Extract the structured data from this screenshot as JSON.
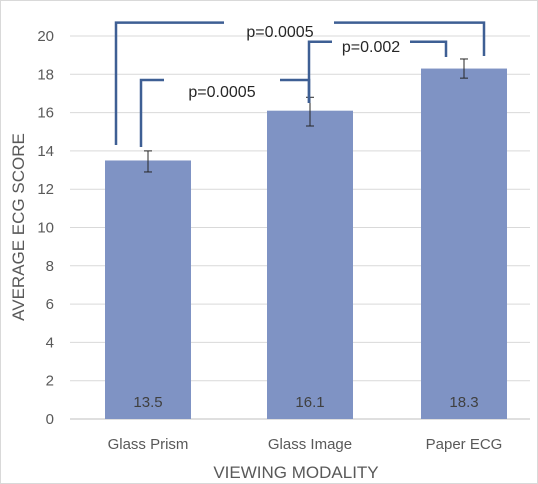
{
  "chart_data": {
    "type": "bar",
    "categories": [
      "Glass Prism",
      "Glass Image",
      "Paper ECG"
    ],
    "values": [
      13.5,
      16.1,
      18.3
    ],
    "data_labels": [
      "13.5",
      "16.1",
      "18.3"
    ],
    "error_bars": [
      {
        "low": 12.9,
        "high": 14.0
      },
      {
        "low": 15.3,
        "high": 16.8
      },
      {
        "low": 17.8,
        "high": 18.8
      }
    ],
    "title": "",
    "xlabel": "VIEWING MODALITY",
    "ylabel": "AVERAGE ECG SCORE",
    "ylim": [
      0,
      20
    ],
    "yticks": [
      0,
      2,
      4,
      6,
      8,
      10,
      12,
      14,
      16,
      18,
      20
    ],
    "grid": "horizontal",
    "legend": "none",
    "bar_color": "#7f93c4",
    "grid_color": "#d9d9d9",
    "bracket_color": "#3e5f94",
    "significance": [
      {
        "from": 0,
        "to": 2,
        "label": "p=0.0005",
        "y_data": 20.7
      },
      {
        "from": 0,
        "to": 1,
        "label": "p=0.0005",
        "y_data": 17.7
      },
      {
        "from": 1,
        "to": 2,
        "label": "p=0.002",
        "y_data": 19.7
      }
    ]
  }
}
